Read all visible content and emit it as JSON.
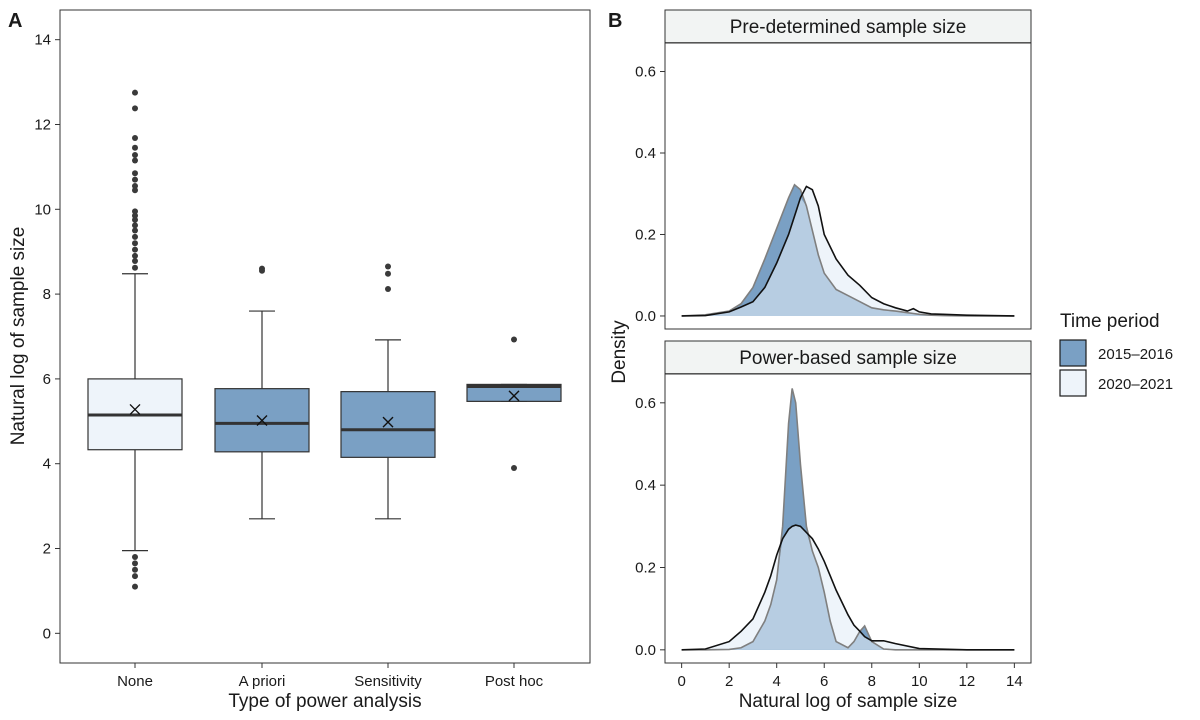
{
  "panel_letters": {
    "a": "A",
    "b": "B"
  },
  "legend": {
    "title": "Time period",
    "items": [
      {
        "label": "2015–2016",
        "color": "#7aa0c4"
      },
      {
        "label": "2020–2021",
        "color": "#eef4fa"
      }
    ]
  },
  "colors": {
    "dark_fill": "#7aa0c4",
    "light_fill": "#eef4fa",
    "overlap_fill": "#b7cde2",
    "strip_bg": "#f2f4f3",
    "point": "#3a3a3a"
  },
  "chart_data": [
    {
      "type": "boxplot",
      "panel": "A",
      "title": "",
      "xlabel": "Type of power analysis",
      "ylabel": "Natural log of sample size",
      "ylim": [
        -0.7,
        14.7
      ],
      "yticks": [
        0,
        2,
        4,
        6,
        8,
        10,
        12,
        14
      ],
      "categories": [
        "None",
        "A priori",
        "Sensitivity",
        "Post hoc"
      ],
      "boxes": [
        {
          "category": "None",
          "period": "2020–2021",
          "whisker_low": 1.95,
          "q1": 4.33,
          "median": 5.15,
          "q3": 6.0,
          "whisker_high": 8.48,
          "mean": 5.28,
          "outliers": [
            1.1,
            1.35,
            1.5,
            1.65,
            1.8,
            8.62,
            8.78,
            8.9,
            9.05,
            9.2,
            9.35,
            9.5,
            9.62,
            9.75,
            9.85,
            9.95,
            10.45,
            10.55,
            10.7,
            10.85,
            11.15,
            11.28,
            11.45,
            11.68,
            12.38,
            12.75
          ]
        },
        {
          "category": "A priori",
          "period": "2015–2016",
          "whisker_low": 2.7,
          "q1": 4.28,
          "median": 4.95,
          "q3": 5.77,
          "whisker_high": 7.6,
          "mean": 5.02,
          "outliers": [
            8.55,
            8.6
          ]
        },
        {
          "category": "Sensitivity",
          "period": "2015–2016",
          "whisker_low": 2.7,
          "q1": 4.15,
          "median": 4.8,
          "q3": 5.7,
          "whisker_high": 6.92,
          "mean": 4.98,
          "outliers": [
            8.12,
            8.48,
            8.65
          ]
        },
        {
          "category": "Post hoc",
          "period": "2015–2016",
          "whisker_low": 5.47,
          "q1": 5.47,
          "median": 5.82,
          "q3": 5.87,
          "whisker_high": 5.87,
          "mean": 5.6,
          "outliers": [
            3.9,
            6.93
          ]
        }
      ]
    },
    {
      "type": "density",
      "panel": "B",
      "xlabel": "Natural log of sample size",
      "ylabel": "Density",
      "xlim": [
        -0.7,
        14.7
      ],
      "ylim": [
        -0.032,
        0.67
      ],
      "xticks": [
        0,
        2,
        4,
        6,
        8,
        10,
        12,
        14
      ],
      "yticks": [
        0.0,
        0.2,
        0.4,
        0.6
      ],
      "facets": [
        {
          "title": "Pre-determined sample size",
          "x": [
            0,
            1,
            2,
            2.5,
            3,
            3.5,
            4,
            4.5,
            4.75,
            5,
            5.25,
            5.5,
            5.75,
            6,
            6.5,
            7,
            7.5,
            8,
            8.5,
            9,
            9.5,
            9.75,
            10,
            10.5,
            11,
            12,
            13,
            14
          ],
          "series": [
            {
              "name": "2015–2016",
              "values": [
                0,
                0.003,
                0.012,
                0.03,
                0.07,
                0.14,
                0.215,
                0.29,
                0.322,
                0.31,
                0.27,
                0.21,
                0.15,
                0.105,
                0.065,
                0.05,
                0.035,
                0.02,
                0.015,
                0.012,
                0.008,
                0.006,
                0.004,
                0.002,
                0.001,
                0,
                0,
                0
              ]
            },
            {
              "name": "2020–2021",
              "values": [
                0,
                0.001,
                0.01,
                0.022,
                0.035,
                0.07,
                0.13,
                0.2,
                0.245,
                0.29,
                0.318,
                0.31,
                0.27,
                0.2,
                0.14,
                0.1,
                0.075,
                0.045,
                0.03,
                0.02,
                0.012,
                0.018,
                0.01,
                0.005,
                0.004,
                0.002,
                0.001,
                0
              ]
            }
          ]
        },
        {
          "title": "Power-based sample size",
          "x": [
            0,
            1,
            2,
            2.5,
            3,
            3.5,
            3.75,
            4,
            4.25,
            4.5,
            4.65,
            4.8,
            5,
            5.25,
            5.5,
            5.75,
            6,
            6.25,
            6.5,
            7,
            7.25,
            7.5,
            7.7,
            8,
            8.5,
            9,
            10,
            12,
            14
          ],
          "series": [
            {
              "name": "2015–2016",
              "values": [
                0,
                0,
                0.001,
                0.005,
                0.02,
                0.07,
                0.11,
                0.17,
                0.3,
                0.55,
                0.635,
                0.6,
                0.45,
                0.3,
                0.24,
                0.2,
                0.14,
                0.07,
                0.02,
                0.005,
                0.02,
                0.045,
                0.058,
                0.02,
                0.002,
                0,
                0,
                0,
                0
              ]
            },
            {
              "name": "2020–2021",
              "values": [
                0,
                0.002,
                0.02,
                0.045,
                0.075,
                0.14,
                0.18,
                0.23,
                0.27,
                0.293,
                0.3,
                0.303,
                0.3,
                0.285,
                0.27,
                0.245,
                0.215,
                0.18,
                0.145,
                0.085,
                0.06,
                0.045,
                0.032,
                0.022,
                0.022,
                0.015,
                0.003,
                0,
                0
              ]
            }
          ]
        }
      ]
    }
  ]
}
